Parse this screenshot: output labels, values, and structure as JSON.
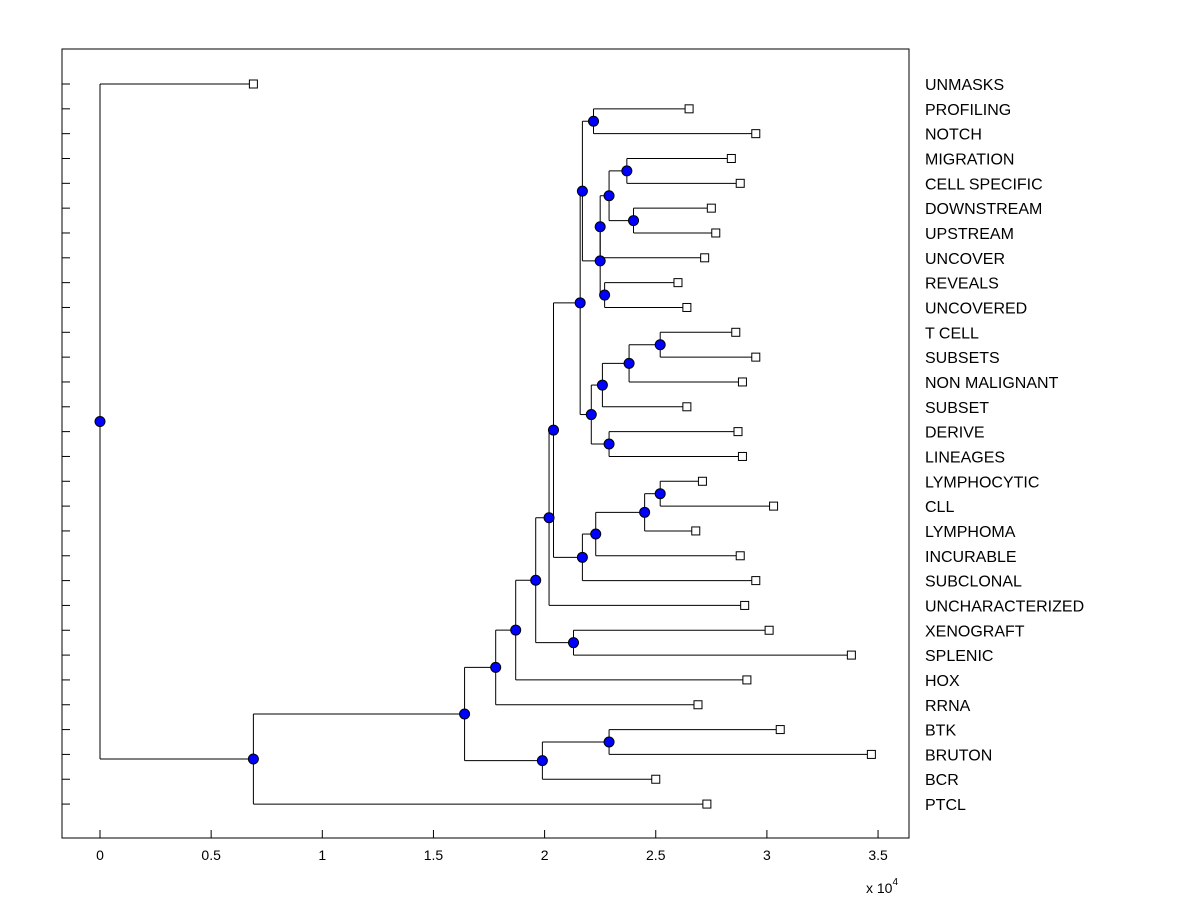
{
  "chart_data": {
    "type": "dendrogram",
    "orientation": "horizontal",
    "x_ticks": [
      0,
      0.5,
      1,
      1.5,
      2,
      2.5,
      3,
      3.5
    ],
    "x_tick_labels": [
      "0",
      "0.5",
      "1",
      "1.5",
      "2",
      "2.5",
      "3",
      "3.5"
    ],
    "x_multiplier_label": "x 10",
    "x_multiplier_exp": "4",
    "xlim": [
      -0.17,
      3.65
    ],
    "leaves": [
      {
        "label": "UNMASKS",
        "x": 0.69
      },
      {
        "label": "PROFILING",
        "x": 2.65
      },
      {
        "label": "NOTCH",
        "x": 2.95
      },
      {
        "label": "MIGRATION",
        "x": 2.84
      },
      {
        "label": "CELL SPECIFIC",
        "x": 2.88
      },
      {
        "label": "DOWNSTREAM",
        "x": 2.75
      },
      {
        "label": "UPSTREAM",
        "x": 2.77
      },
      {
        "label": "UNCOVER",
        "x": 2.72
      },
      {
        "label": "REVEALS",
        "x": 2.6
      },
      {
        "label": "UNCOVERED",
        "x": 2.64
      },
      {
        "label": "T CELL",
        "x": 2.86
      },
      {
        "label": "SUBSETS",
        "x": 2.95
      },
      {
        "label": "NON MALIGNANT",
        "x": 2.89
      },
      {
        "label": "SUBSET",
        "x": 2.64
      },
      {
        "label": "DERIVE",
        "x": 2.87
      },
      {
        "label": "LINEAGES",
        "x": 2.89
      },
      {
        "label": "LYMPHOCYTIC",
        "x": 2.71
      },
      {
        "label": "CLL",
        "x": 3.03
      },
      {
        "label": "LYMPHOMA",
        "x": 2.68
      },
      {
        "label": "INCURABLE",
        "x": 2.88
      },
      {
        "label": "SUBCLONAL",
        "x": 2.95
      },
      {
        "label": "UNCHARACTERIZED",
        "x": 2.9
      },
      {
        "label": "XENOGRAFT",
        "x": 3.01
      },
      {
        "label": "SPLENIC",
        "x": 3.38
      },
      {
        "label": "HOX",
        "x": 2.91
      },
      {
        "label": "RRNA",
        "x": 2.69
      },
      {
        "label": "BTK",
        "x": 3.06
      },
      {
        "label": "BRUTON",
        "x": 3.47
      },
      {
        "label": "BCR",
        "x": 2.5
      },
      {
        "label": "PTCL",
        "x": 2.73
      }
    ],
    "nodes": [
      {
        "id": "n1",
        "x": 2.22,
        "children": [
          1,
          2
        ]
      },
      {
        "id": "n2",
        "x": 2.37,
        "children": [
          3,
          4
        ]
      },
      {
        "id": "n3",
        "x": 2.4,
        "children": [
          5,
          6
        ]
      },
      {
        "id": "n4",
        "x": 2.29,
        "children": [
          "n2",
          "n3"
        ]
      },
      {
        "id": "n5",
        "x": 2.25,
        "children": [
          "n4",
          7
        ]
      },
      {
        "id": "n6",
        "x": 2.27,
        "children": [
          8,
          9
        ]
      },
      {
        "id": "n7",
        "x": 2.25,
        "children": [
          "n5",
          "n6"
        ]
      },
      {
        "id": "n8",
        "x": 2.17,
        "children": [
          "n1",
          "n7"
        ]
      },
      {
        "id": "n9",
        "x": 2.52,
        "children": [
          10,
          11
        ]
      },
      {
        "id": "n10",
        "x": 2.38,
        "children": [
          "n9",
          12
        ]
      },
      {
        "id": "n11",
        "x": 2.26,
        "children": [
          "n10",
          13
        ]
      },
      {
        "id": "n12",
        "x": 2.29,
        "children": [
          14,
          15
        ]
      },
      {
        "id": "n13",
        "x": 2.21,
        "children": [
          "n11",
          "n12"
        ]
      },
      {
        "id": "n14",
        "x": 2.16,
        "children": [
          "n8",
          "n13"
        ]
      },
      {
        "id": "n15",
        "x": 2.52,
        "children": [
          16,
          17
        ]
      },
      {
        "id": "n16",
        "x": 2.45,
        "children": [
          "n15",
          18
        ]
      },
      {
        "id": "n17",
        "x": 2.23,
        "children": [
          "n16",
          19
        ]
      },
      {
        "id": "n18",
        "x": 2.17,
        "children": [
          "n17",
          20
        ]
      },
      {
        "id": "n19",
        "x": 2.04,
        "children": [
          "n14",
          "n18"
        ]
      },
      {
        "id": "n20",
        "x": 2.02,
        "children": [
          "n19",
          21
        ]
      },
      {
        "id": "n21",
        "x": 2.13,
        "children": [
          22,
          23
        ]
      },
      {
        "id": "n22",
        "x": 1.96,
        "children": [
          "n20",
          "n21"
        ]
      },
      {
        "id": "n23",
        "x": 1.87,
        "children": [
          "n22",
          24
        ]
      },
      {
        "id": "n24",
        "x": 1.78,
        "children": [
          "n23",
          25
        ]
      },
      {
        "id": "n25",
        "x": 2.29,
        "children": [
          26,
          27
        ]
      },
      {
        "id": "n26",
        "x": 1.99,
        "children": [
          "n25",
          28
        ]
      },
      {
        "id": "n27",
        "x": 1.64,
        "children": [
          "n24",
          "n26"
        ]
      },
      {
        "id": "n28",
        "x": 0.69,
        "children": [
          "n27",
          29
        ]
      },
      {
        "id": "n29",
        "x": 0.0,
        "children": [
          0,
          "n28"
        ]
      }
    ],
    "root": "n29",
    "colors": {
      "node": "#0000ff",
      "line": "#000000",
      "leaf_marker": "#ffffff"
    }
  }
}
